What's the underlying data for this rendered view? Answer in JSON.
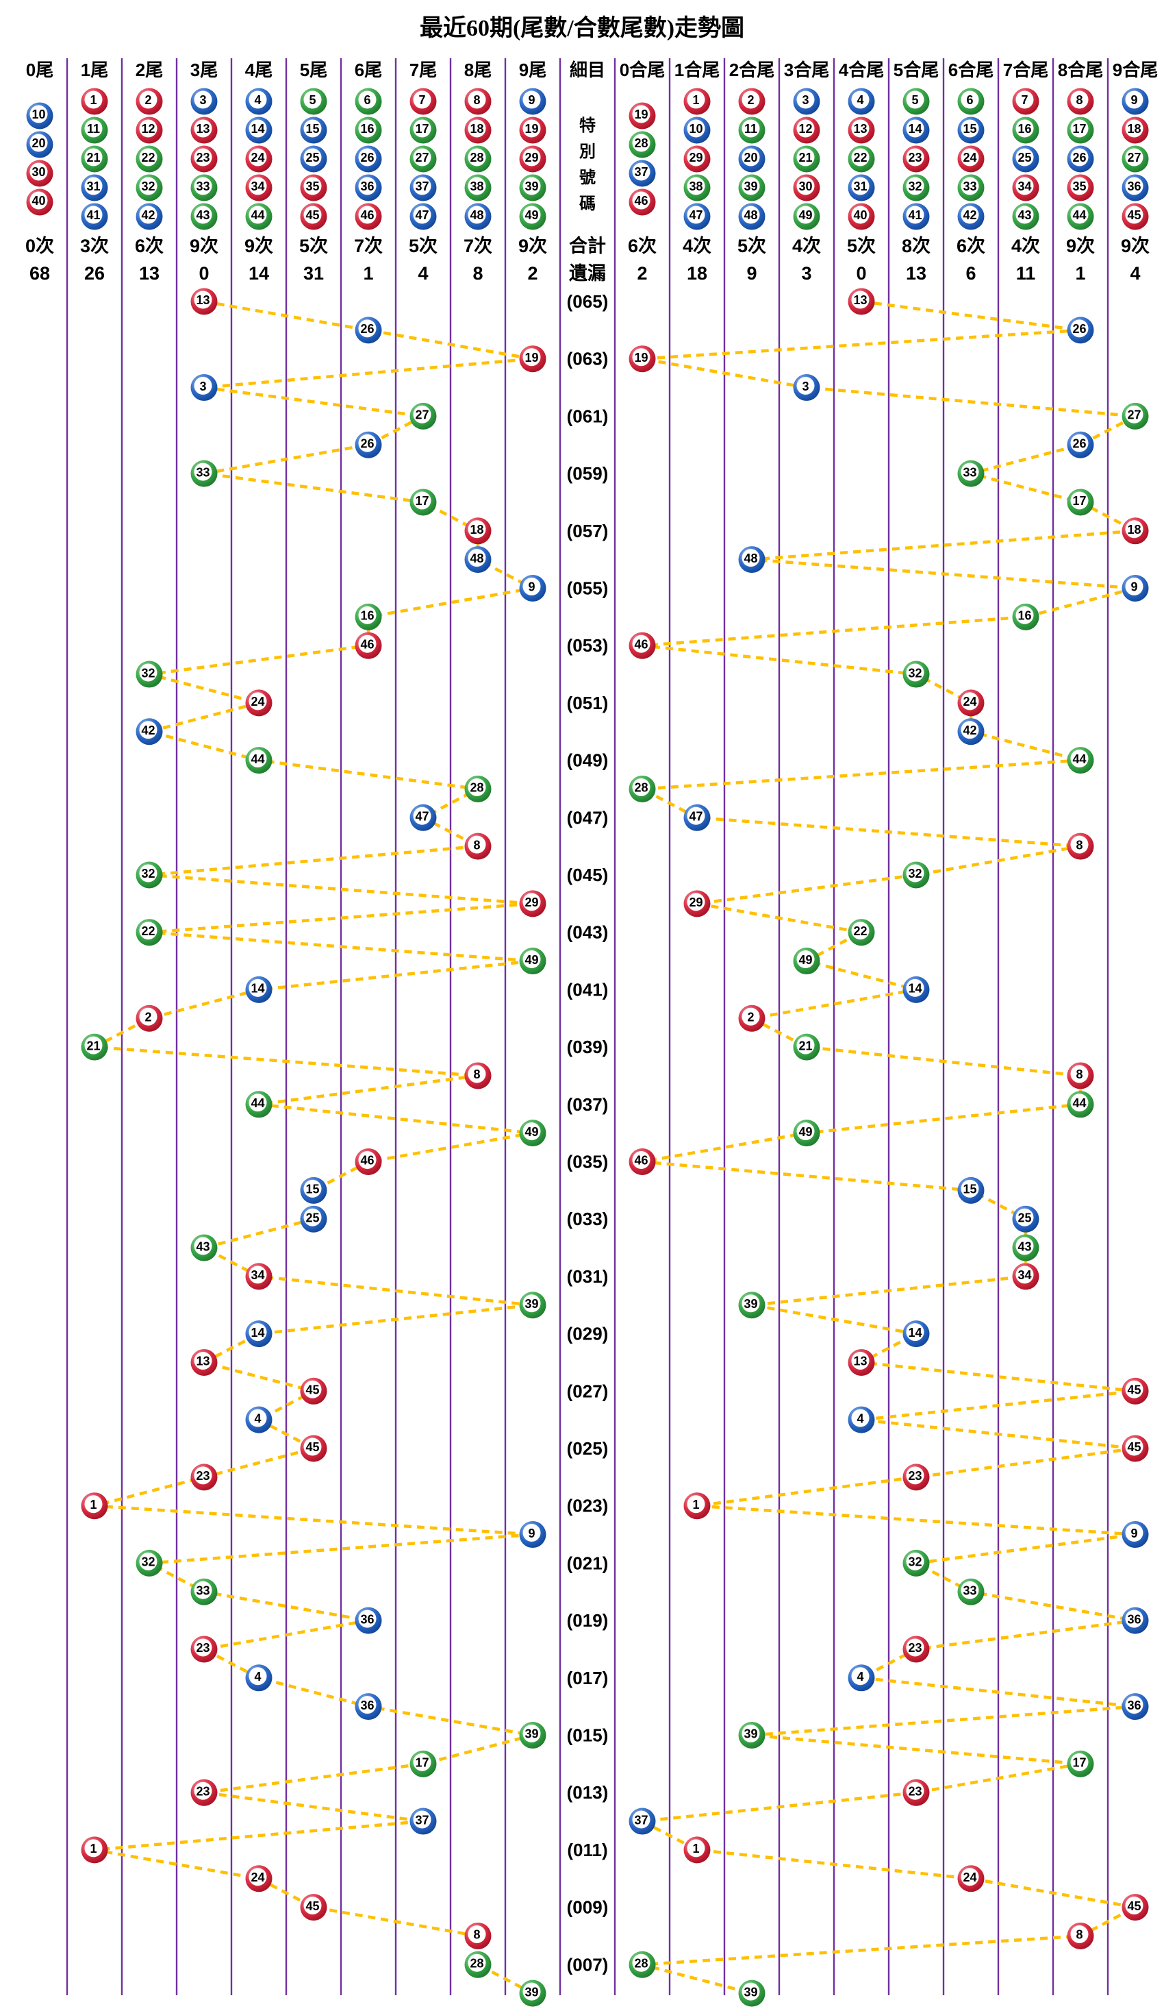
{
  "chart_data": {
    "type": "scatter",
    "title": "最近60期(尾數/合數尾數)走勢圖",
    "detail_header": "細目",
    "special_label": "特別號碼",
    "total_label": "合計",
    "miss_label": "遺漏",
    "left_columns": [
      {
        "label": "0尾",
        "numbers": [
          10,
          20,
          30,
          40
        ],
        "total": "0次",
        "miss": "68"
      },
      {
        "label": "1尾",
        "numbers": [
          1,
          11,
          21,
          31,
          41
        ],
        "total": "3次",
        "miss": "26"
      },
      {
        "label": "2尾",
        "numbers": [
          2,
          12,
          22,
          32,
          42
        ],
        "total": "6次",
        "miss": "13"
      },
      {
        "label": "3尾",
        "numbers": [
          3,
          13,
          23,
          33,
          43
        ],
        "total": "9次",
        "miss": "0"
      },
      {
        "label": "4尾",
        "numbers": [
          4,
          14,
          24,
          34,
          44
        ],
        "total": "9次",
        "miss": "14"
      },
      {
        "label": "5尾",
        "numbers": [
          5,
          15,
          25,
          35,
          45
        ],
        "total": "5次",
        "miss": "31"
      },
      {
        "label": "6尾",
        "numbers": [
          6,
          16,
          26,
          36,
          46
        ],
        "total": "7次",
        "miss": "1"
      },
      {
        "label": "7尾",
        "numbers": [
          7,
          17,
          27,
          37,
          47
        ],
        "total": "5次",
        "miss": "4"
      },
      {
        "label": "8尾",
        "numbers": [
          8,
          18,
          28,
          38,
          48
        ],
        "total": "7次",
        "miss": "8"
      },
      {
        "label": "9尾",
        "numbers": [
          9,
          19,
          29,
          39,
          49
        ],
        "total": "9次",
        "miss": "2"
      }
    ],
    "right_columns": [
      {
        "label": "0合尾",
        "numbers": [
          19,
          28,
          37,
          46
        ],
        "total": "6次",
        "miss": "2"
      },
      {
        "label": "1合尾",
        "numbers": [
          1,
          10,
          29,
          38,
          47
        ],
        "total": "4次",
        "miss": "18"
      },
      {
        "label": "2合尾",
        "numbers": [
          2,
          11,
          20,
          39,
          48
        ],
        "total": "5次",
        "miss": "9"
      },
      {
        "label": "3合尾",
        "numbers": [
          3,
          12,
          21,
          30,
          49
        ],
        "total": "4次",
        "miss": "3"
      },
      {
        "label": "4合尾",
        "numbers": [
          4,
          13,
          22,
          31,
          40
        ],
        "total": "5次",
        "miss": "0"
      },
      {
        "label": "5合尾",
        "numbers": [
          5,
          14,
          23,
          32,
          41
        ],
        "total": "8次",
        "miss": "13"
      },
      {
        "label": "6合尾",
        "numbers": [
          6,
          15,
          24,
          33,
          42
        ],
        "total": "6次",
        "miss": "6"
      },
      {
        "label": "7合尾",
        "numbers": [
          7,
          16,
          25,
          34,
          43
        ],
        "total": "4次",
        "miss": "11"
      },
      {
        "label": "8合尾",
        "numbers": [
          8,
          17,
          26,
          35,
          44
        ],
        "total": "9次",
        "miss": "1"
      },
      {
        "label": "9合尾",
        "numbers": [
          9,
          18,
          27,
          36,
          45
        ],
        "total": "9次",
        "miss": "4"
      }
    ],
    "draws": [
      {
        "label": "(065)",
        "num": 13
      },
      {
        "label": "",
        "num": 26
      },
      {
        "label": "(063)",
        "num": 19
      },
      {
        "label": "",
        "num": 3
      },
      {
        "label": "(061)",
        "num": 27
      },
      {
        "label": "",
        "num": 26
      },
      {
        "label": "(059)",
        "num": 33
      },
      {
        "label": "",
        "num": 17
      },
      {
        "label": "(057)",
        "num": 18
      },
      {
        "label": "",
        "num": 48
      },
      {
        "label": "(055)",
        "num": 9
      },
      {
        "label": "",
        "num": 16
      },
      {
        "label": "(053)",
        "num": 46
      },
      {
        "label": "",
        "num": 32
      },
      {
        "label": "(051)",
        "num": 24
      },
      {
        "label": "",
        "num": 42
      },
      {
        "label": "(049)",
        "num": 44
      },
      {
        "label": "",
        "num": 28
      },
      {
        "label": "(047)",
        "num": 47
      },
      {
        "label": "",
        "num": 8
      },
      {
        "label": "(045)",
        "num": 32
      },
      {
        "label": "",
        "num": 29
      },
      {
        "label": "(043)",
        "num": 22
      },
      {
        "label": "",
        "num": 49
      },
      {
        "label": "(041)",
        "num": 14
      },
      {
        "label": "",
        "num": 2
      },
      {
        "label": "(039)",
        "num": 21
      },
      {
        "label": "",
        "num": 8
      },
      {
        "label": "(037)",
        "num": 44
      },
      {
        "label": "",
        "num": 49
      },
      {
        "label": "(035)",
        "num": 46
      },
      {
        "label": "",
        "num": 15
      },
      {
        "label": "(033)",
        "num": 25
      },
      {
        "label": "",
        "num": 43
      },
      {
        "label": "(031)",
        "num": 34
      },
      {
        "label": "",
        "num": 39
      },
      {
        "label": "(029)",
        "num": 14
      },
      {
        "label": "",
        "num": 13
      },
      {
        "label": "(027)",
        "num": 45
      },
      {
        "label": "",
        "num": 4
      },
      {
        "label": "(025)",
        "num": 45
      },
      {
        "label": "",
        "num": 23
      },
      {
        "label": "(023)",
        "num": 1
      },
      {
        "label": "",
        "num": 9
      },
      {
        "label": "(021)",
        "num": 32
      },
      {
        "label": "",
        "num": 33
      },
      {
        "label": "(019)",
        "num": 36
      },
      {
        "label": "",
        "num": 23
      },
      {
        "label": "(017)",
        "num": 4
      },
      {
        "label": "",
        "num": 36
      },
      {
        "label": "(015)",
        "num": 39
      },
      {
        "label": "",
        "num": 17
      },
      {
        "label": "(013)",
        "num": 23
      },
      {
        "label": "",
        "num": 37
      },
      {
        "label": "(011)",
        "num": 1
      },
      {
        "label": "",
        "num": 24
      },
      {
        "label": "(009)",
        "num": 45
      },
      {
        "label": "",
        "num": 8
      },
      {
        "label": "(007)",
        "num": 28
      },
      {
        "label": "",
        "num": 39
      }
    ],
    "ball_colors": {
      "red": [
        1,
        2,
        7,
        8,
        12,
        13,
        18,
        19,
        23,
        24,
        29,
        30,
        34,
        35,
        40,
        45,
        46
      ],
      "blue": [
        3,
        4,
        9,
        10,
        14,
        15,
        20,
        25,
        26,
        31,
        36,
        37,
        41,
        42,
        47,
        48
      ],
      "green": [
        5,
        6,
        11,
        16,
        17,
        21,
        22,
        27,
        28,
        32,
        33,
        38,
        39,
        43,
        44,
        49
      ]
    },
    "style_colors": {
      "grid_line": "#7030A0",
      "trend_line": "#FFC000",
      "red": "#C41230",
      "blue": "#1F5FBF",
      "green": "#2E9B3F",
      "text": "#000000"
    }
  }
}
